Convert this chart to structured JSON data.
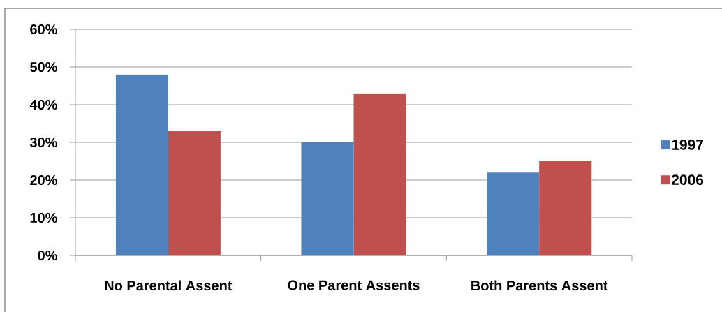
{
  "chart_data": {
    "type": "bar",
    "categories": [
      "No Parental Assent",
      "One Parent Assents",
      "Both Parents Assent"
    ],
    "series": [
      {
        "name": "1997",
        "color": "#4f81bd",
        "values": [
          48,
          30,
          22
        ]
      },
      {
        "name": "2006",
        "color": "#c0504d",
        "values": [
          33,
          43,
          25
        ]
      }
    ],
    "ylim": [
      0,
      60
    ],
    "yticks": [
      {
        "value": 0,
        "label": "0%"
      },
      {
        "value": 10,
        "label": "10%"
      },
      {
        "value": 20,
        "label": "20%"
      },
      {
        "value": 30,
        "label": "30%"
      },
      {
        "value": 40,
        "label": "40%"
      },
      {
        "value": 50,
        "label": "50%"
      },
      {
        "value": 60,
        "label": "60%"
      }
    ],
    "grid": "y",
    "legend": "right"
  }
}
